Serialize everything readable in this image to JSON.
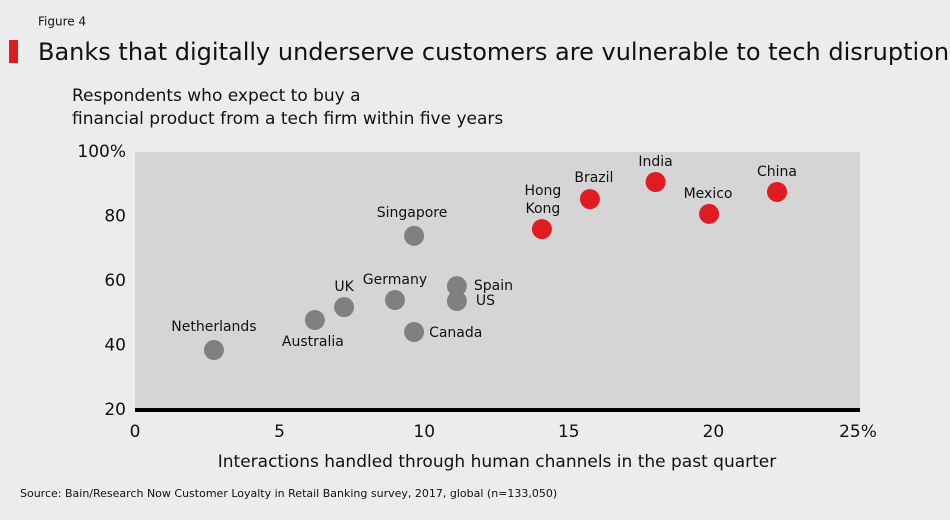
{
  "figure_label": "Figure 4",
  "source": "Source: Bain/Research Now Customer Loyalty in Retail Banking survey, 2017, global (n=133,050)",
  "chart_data": {
    "type": "scatter",
    "title": "Banks that digitally underserve customers are vulnerable to tech disruption",
    "subtitle_lines": [
      "Respondents who expect to buy a",
      "financial product from a tech firm within five years"
    ],
    "x_label": "Interactions handled through human channels in the past quarter",
    "points": [
      {
        "label": "Netherlands",
        "x": 2.73,
        "y": 38.6,
        "color": "#808080"
      },
      {
        "label": "Australia",
        "x": 6.22,
        "y": 47.9,
        "color": "#808080"
      },
      {
        "label": "UK",
        "x": 7.23,
        "y": 51.9,
        "color": "#808080"
      },
      {
        "label": "Germany",
        "x": 8.99,
        "y": 54.1,
        "color": "#808080"
      },
      {
        "label": "Singapore",
        "x": 9.65,
        "y": 74,
        "color": "#808080"
      },
      {
        "label": "Canada",
        "x": 9.65,
        "y": 44.2,
        "color": "#808080"
      },
      {
        "label": "Spain",
        "x": 11.13,
        "y": 58.4,
        "color": "#808080"
      },
      {
        "label": "US",
        "x": 11.13,
        "y": 53.8,
        "color": "#808080"
      },
      {
        "label": "Hong Kong",
        "x": 14.07,
        "y": 76.1,
        "color": "#e11b22"
      },
      {
        "label": "Brazil",
        "x": 15.73,
        "y": 85.4,
        "color": "#e11b22"
      },
      {
        "label": "India",
        "x": 18.0,
        "y": 90.7,
        "color": "#e11b22"
      },
      {
        "label": "Mexico",
        "x": 19.85,
        "y": 80.8,
        "color": "#e11b22"
      },
      {
        "label": "China",
        "x": 22.2,
        "y": 87.6,
        "color": "#e11b22"
      }
    ],
    "xlim": [
      0,
      25
    ],
    "ylim": [
      20,
      100
    ],
    "xticks": [
      0,
      5,
      10,
      15,
      20,
      {
        "value": 25,
        "label": "25%"
      }
    ],
    "yticks": [
      20,
      40,
      60,
      80,
      {
        "value": 100,
        "label": "100%"
      }
    ],
    "grid": false
  }
}
